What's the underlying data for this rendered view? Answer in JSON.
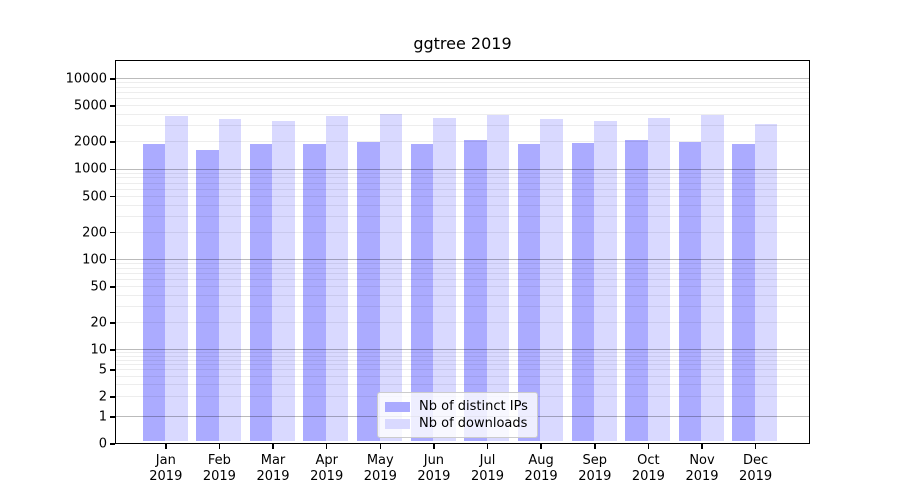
{
  "title": "ggtree 2019",
  "chart_data": {
    "type": "bar",
    "title": "ggtree 2019",
    "scale_y": "symlog",
    "grid": "on",
    "legend_position": "lower-center",
    "categories": [
      "Jan",
      "Feb",
      "Mar",
      "Apr",
      "May",
      "Jun",
      "Jul",
      "Aug",
      "Sep",
      "Oct",
      "Nov",
      "Dec"
    ],
    "category_year": "2019",
    "series": [
      {
        "name": "Nb of distinct IPs",
        "color": "#ababff",
        "values": [
          1890,
          1620,
          1880,
          1890,
          1960,
          1870,
          2060,
          1890,
          1920,
          2050,
          1970,
          1860
        ]
      },
      {
        "name": "Nb of downloads",
        "color": "#d9d9ff",
        "values": [
          3800,
          3500,
          3330,
          3780,
          3990,
          3650,
          3960,
          3520,
          3330,
          3630,
          3920,
          3120
        ]
      }
    ],
    "yticks": [
      10000,
      5000,
      2000,
      1000,
      500,
      200,
      100,
      50,
      20,
      10,
      5,
      2,
      1,
      0
    ],
    "ylim": [
      0,
      20000
    ],
    "xlabel": "",
    "ylabel": "",
    "colors": {
      "major_grid": "#bbbbbb",
      "minor_grid": "#ededed",
      "axis": "#000000",
      "background": "#ffffff"
    }
  }
}
